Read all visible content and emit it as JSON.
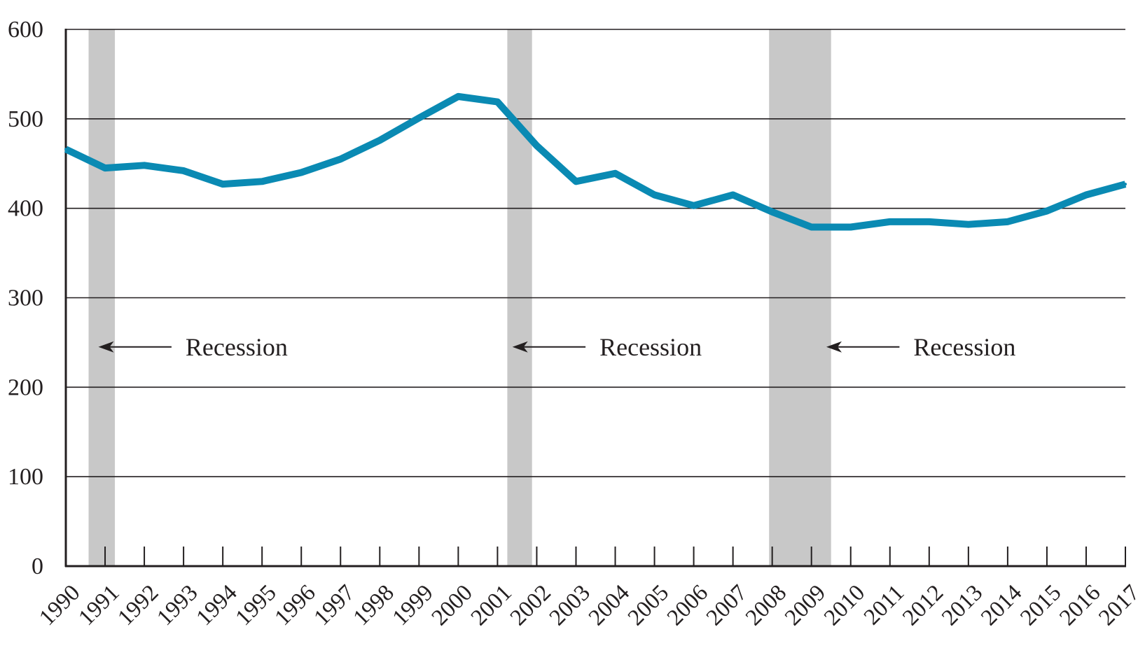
{
  "chart_data": {
    "type": "line",
    "title": "",
    "xlabel": "",
    "ylabel": "",
    "x": [
      "1990",
      "1991",
      "1992",
      "1993",
      "1994",
      "1995",
      "1996",
      "1997",
      "1998",
      "1999",
      "2000",
      "2001",
      "2002",
      "2003",
      "2004",
      "2005",
      "2006",
      "2007",
      "2008",
      "2009",
      "2010",
      "2011",
      "2012",
      "2013",
      "2014",
      "2015",
      "2016",
      "2017"
    ],
    "series": [
      {
        "values": [
          466,
          445,
          448,
          442,
          427,
          430,
          440,
          455,
          476,
          501,
          525,
          519,
          470,
          430,
          439,
          415,
          403,
          415,
          396,
          379,
          379,
          385,
          385,
          382,
          385,
          397,
          415,
          427
        ],
        "color": "#0a8ab3"
      }
    ],
    "ylim": [
      0,
      600
    ],
    "yticks": [
      "0",
      "100",
      "200",
      "300",
      "400",
      "500",
      "600"
    ],
    "grid": true,
    "recessions": [
      {
        "start": 1990.58,
        "end": 1991.25
      },
      {
        "start": 2001.25,
        "end": 2001.88
      },
      {
        "start": 2007.92,
        "end": 2009.5
      }
    ],
    "annotations": [
      {
        "text": "Recession",
        "x": 1993.05,
        "y": 245,
        "arrow_to": 1990.83
      },
      {
        "text": "Recession",
        "x": 2003.6,
        "y": 245,
        "arrow_to": 2001.38
      },
      {
        "text": "Recession",
        "x": 2011.6,
        "y": 245,
        "arrow_to": 2009.38
      }
    ],
    "colors": {
      "line": "#0a8ab3",
      "recession": "#c8c8c8",
      "grid": "#231f20",
      "text": "#231f20"
    }
  }
}
